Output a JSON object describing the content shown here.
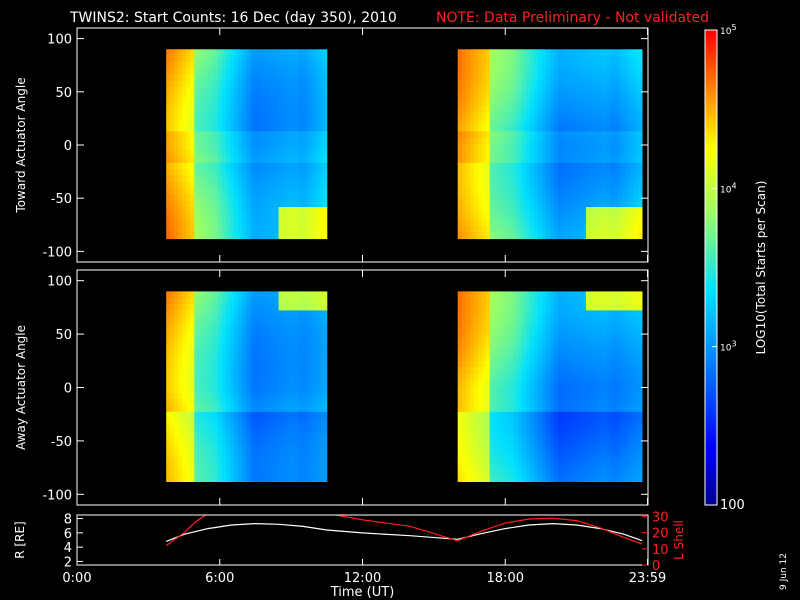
{
  "header": {
    "title": "TWINS2: Start Counts: 16 Dec (day 350), 2010",
    "note": "NOTE: Data Preliminary - Not validated",
    "note_color": "#ff2020"
  },
  "footer": {
    "date_stamp": "9 Jun 12"
  },
  "chart_data": [
    {
      "type": "heatmap",
      "name": "toward-panel",
      "ylabel": "Toward Actuator Angle",
      "ylim": [
        -110,
        110
      ],
      "yticks": [
        100,
        50,
        0,
        -50,
        -100
      ],
      "xlim_hours": [
        0,
        24
      ],
      "coverage_hours": [
        [
          3.75,
          10.5
        ],
        [
          16.0,
          23.75
        ]
      ],
      "angle_range": [
        -88,
        90
      ]
    },
    {
      "type": "heatmap",
      "name": "away-panel",
      "ylabel": "Away Actuator Angle",
      "ylim": [
        -110,
        110
      ],
      "yticks": [
        100,
        50,
        0,
        -50,
        -100
      ],
      "xlim_hours": [
        0,
        24
      ],
      "coverage_hours": [
        [
          3.75,
          10.5
        ],
        [
          16.0,
          23.75
        ]
      ],
      "angle_range": [
        -88,
        90
      ]
    },
    {
      "type": "line",
      "name": "orbit-panel",
      "xlabel": "Time (UT)",
      "xticks": [
        "0:00",
        "6:00",
        "12:00",
        "18:00",
        "23:59"
      ],
      "xtick_hours": [
        0,
        6,
        12,
        18,
        23.98
      ],
      "ylabel_left": "R [RE]",
      "ylabel_left_sub": "E",
      "ylim_left": [
        1.5,
        8.5
      ],
      "yticks_left": [
        8,
        6,
        4,
        2
      ],
      "ylabel_right": "L Shell",
      "ylim_right": [
        0,
        31
      ],
      "yticks_right": [
        30,
        20,
        10,
        0
      ],
      "right_color": "#ff2020",
      "series": [
        {
          "name": "R",
          "axis": "left",
          "color": "#ffffff",
          "x": [
            3.75,
            4.5,
            5.5,
            6.5,
            7.5,
            8.5,
            9.5,
            10.5,
            12,
            14,
            16,
            17,
            18,
            19,
            20,
            21,
            22,
            23,
            23.75
          ],
          "y": [
            4.8,
            5.8,
            6.6,
            7.1,
            7.3,
            7.2,
            6.9,
            6.4,
            6.0,
            5.6,
            5.1,
            5.9,
            6.6,
            7.1,
            7.3,
            7.1,
            6.6,
            5.8,
            4.9
          ]
        },
        {
          "name": "L Shell",
          "axis": "right",
          "color": "#ff2020",
          "x": [
            3.75,
            4.5,
            5.0,
            5.5,
            10.5,
            12,
            14,
            16.0,
            17,
            18,
            19,
            20,
            21,
            22,
            23,
            23.75
          ],
          "y": [
            12,
            20,
            27,
            32,
            32,
            28,
            24,
            15,
            21,
            26,
            28.5,
            29,
            27.5,
            23,
            17,
            13
          ]
        }
      ]
    },
    {
      "type": "colorbar",
      "name": "colorbar",
      "label": "LOG10(Total Starts per Scan)",
      "label_prefix": "LOG",
      "label_sub": "10",
      "label_suffix": "(Total Starts per Scan)",
      "scale": "log",
      "range": [
        100,
        100000
      ],
      "ticks": [
        {
          "value": 100000,
          "label": "10",
          "sup": "5"
        },
        {
          "value": 10000,
          "label": "10",
          "sup": "4"
        },
        {
          "value": 1000,
          "label": "10",
          "sup": "3"
        },
        {
          "value": 100,
          "label": "100",
          "sup": ""
        }
      ]
    }
  ]
}
